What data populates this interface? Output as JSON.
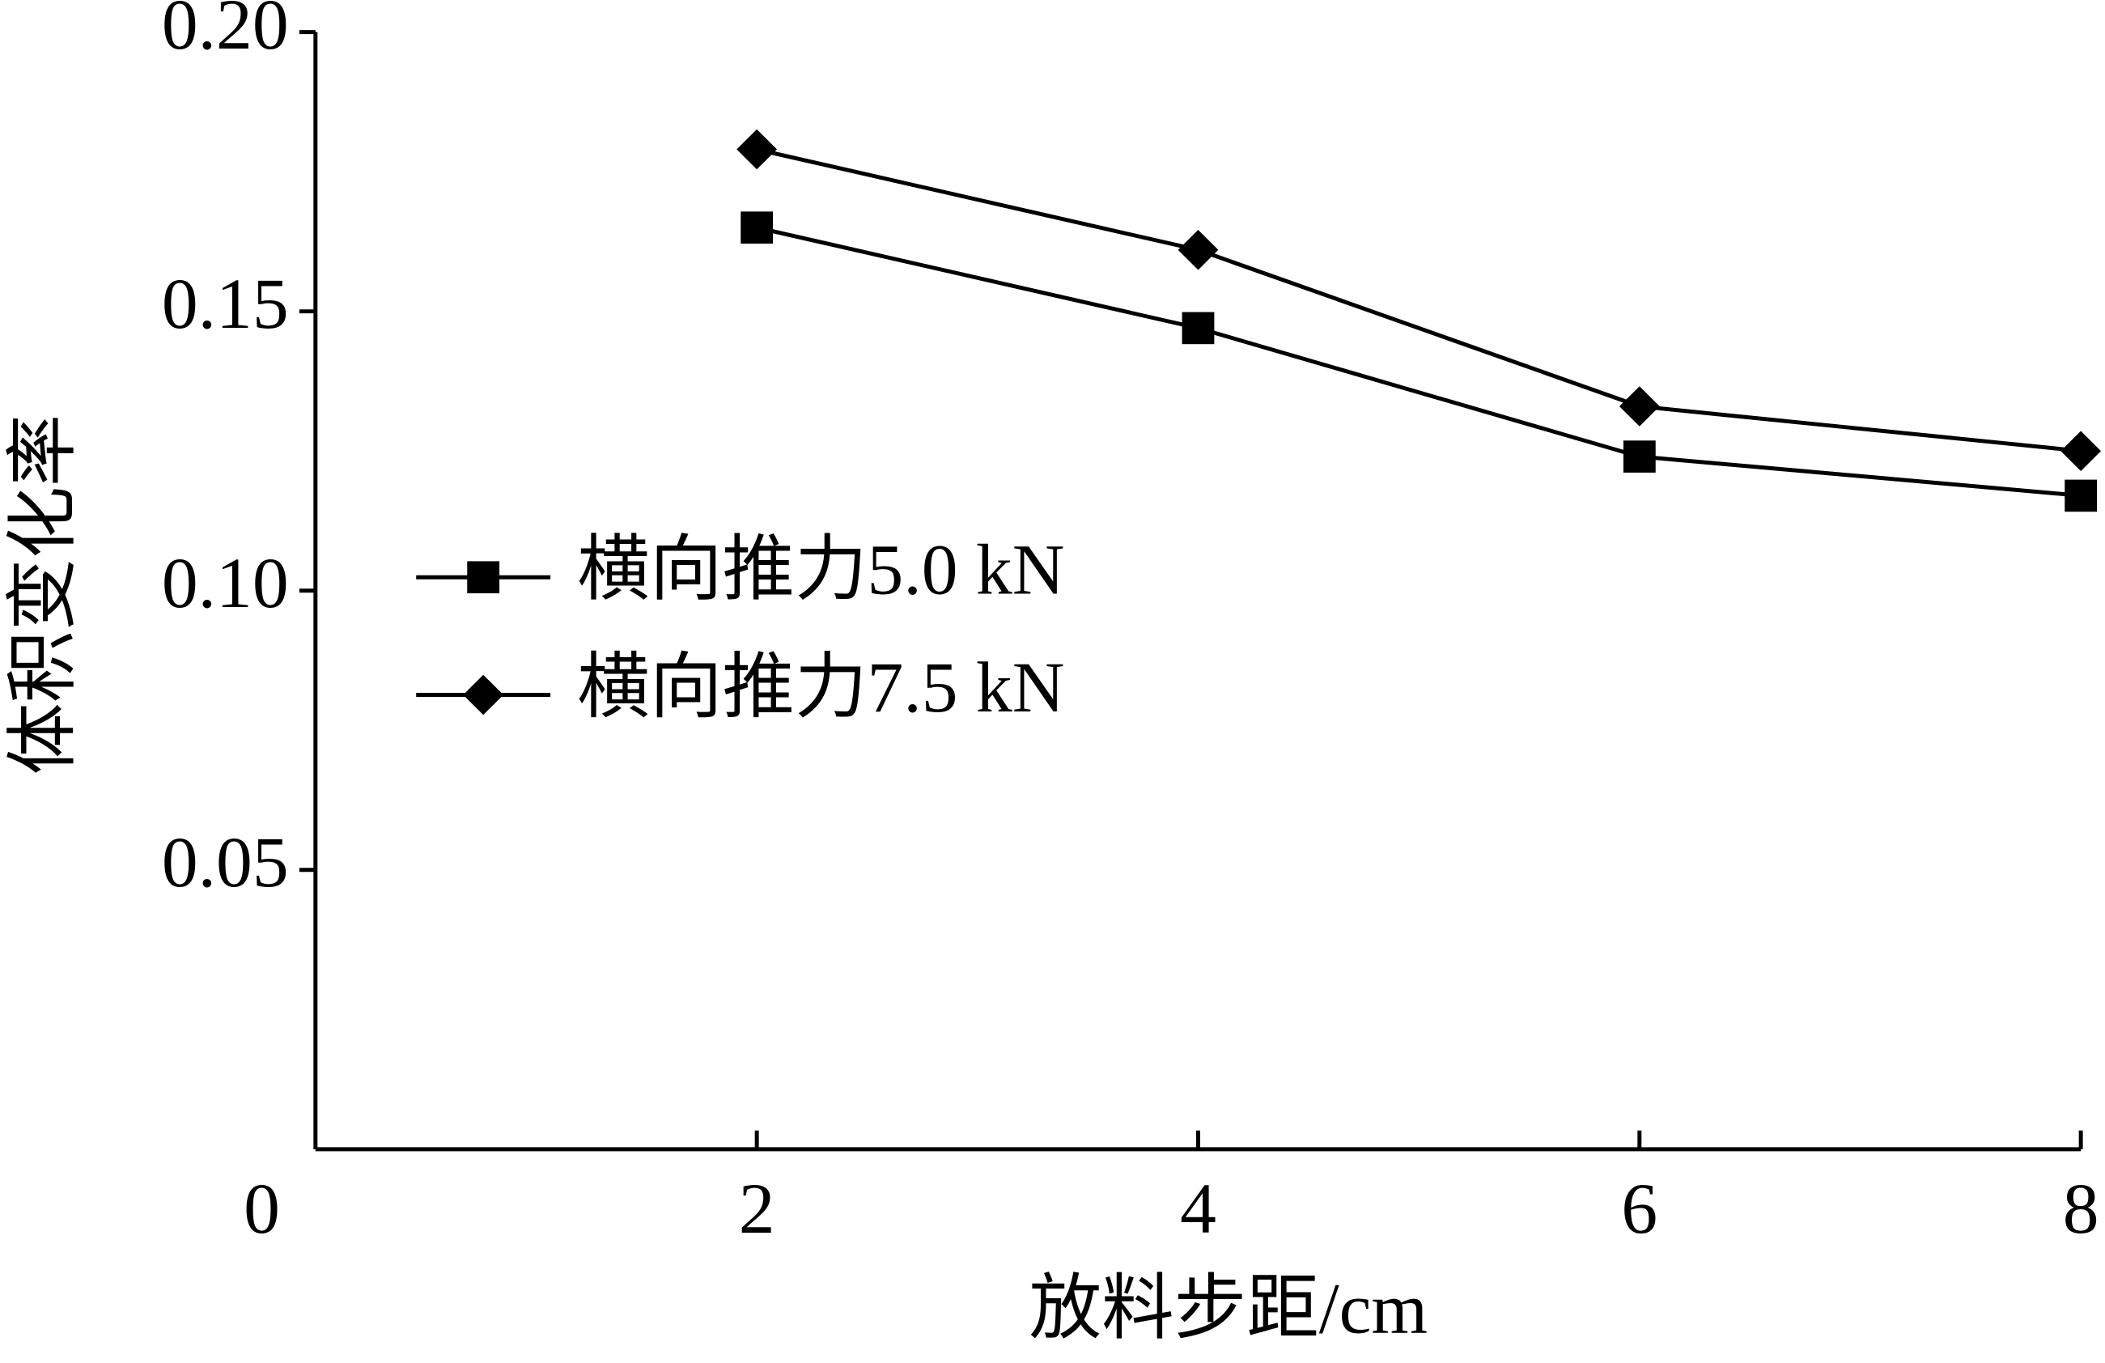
{
  "chart_data": {
    "type": "line",
    "x_label": "放料步距/cm",
    "y_label": "体积变化率",
    "x": [
      2,
      4,
      6,
      8
    ],
    "series": [
      {
        "name": "横向推力5.0 kN",
        "color": "#000000",
        "marker": "square",
        "values": [
          0.165,
          0.147,
          0.124,
          0.117
        ]
      },
      {
        "name": "横向推力7.5 kN",
        "color": "#000000",
        "marker": "diamond",
        "values": [
          0.179,
          0.161,
          0.133,
          0.125
        ]
      }
    ],
    "xlim": [
      0,
      8
    ],
    "xticks": [
      0,
      2,
      4,
      6,
      8
    ],
    "ylim": [
      0,
      0.2
    ],
    "yticks": [
      0.05,
      {
        "value": 0.1,
        "label": "0.10"
      },
      0.15,
      {
        "value": 0.2,
        "label": "0.20"
      }
    ],
    "grid": false,
    "legend": "left"
  }
}
